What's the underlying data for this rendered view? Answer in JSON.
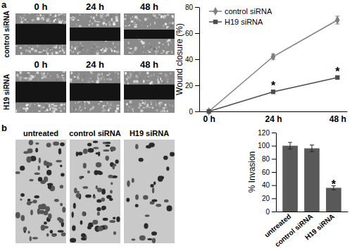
{
  "chart_data": [
    {
      "type": "line",
      "ylabel": "Wound closure (%)",
      "categories": [
        "0 h",
        "24 h",
        "48 h"
      ],
      "series": [
        {
          "name": "control siRNA",
          "color": "#7f7f7f",
          "marker": "diamond",
          "values": [
            0,
            42,
            70
          ],
          "errors": [
            0,
            2,
            3
          ]
        },
        {
          "name": "H19 siRNA",
          "color": "#4d4d4d",
          "marker": "square",
          "values": [
            0,
            15,
            26
          ],
          "errors": [
            0,
            1,
            1
          ]
        }
      ],
      "ylim": [
        0,
        80
      ],
      "yticks": [
        0,
        20,
        40,
        60,
        80
      ],
      "grid": false,
      "legend": "upper left",
      "annotations": [
        {
          "text": "*",
          "category": "24 h",
          "series": "H19 siRNA"
        },
        {
          "text": "*",
          "category": "48 h",
          "series": "H19 siRNA"
        }
      ]
    },
    {
      "type": "bar",
      "ylabel": "% Invasion",
      "categories": [
        "untreated",
        "control siRNA",
        "H19 siRNA"
      ],
      "values": [
        100,
        96,
        36
      ],
      "errors": [
        5,
        5,
        3
      ],
      "color": "#595959",
      "ylim": [
        0,
        120
      ],
      "yticks": [
        0,
        20,
        40,
        60,
        80,
        100,
        120
      ],
      "grid": false,
      "annotations": [
        {
          "text": "*",
          "category": "H19 siRNA"
        }
      ]
    }
  ],
  "panels": [
    {
      "label": "a",
      "columns": [
        "0 h",
        "24 h",
        "48 h"
      ],
      "rows": [
        "control siRNA",
        "H19 siRNA"
      ]
    },
    {
      "label": "b",
      "columns": [
        "untreated",
        "control siRNA",
        "H19 siRNA"
      ]
    }
  ]
}
